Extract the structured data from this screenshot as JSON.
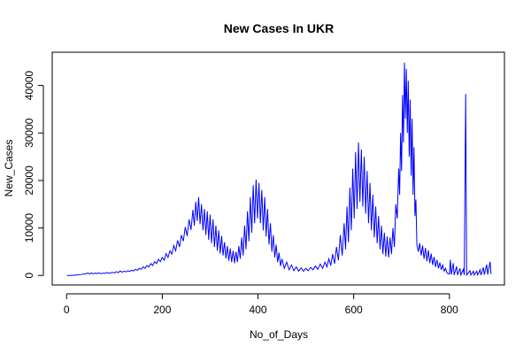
{
  "chart_data": {
    "type": "line",
    "title": "New Cases In UKR",
    "xlabel": "No_of_Days",
    "ylabel": "New_Cases",
    "xlim": [
      -30,
      915
    ],
    "ylim": [
      -2000,
      47000
    ],
    "x_ticks": [
      0,
      200,
      400,
      600,
      800
    ],
    "y_ticks": [
      0,
      10000,
      20000,
      30000,
      40000
    ],
    "grid": false,
    "legend": "none",
    "line_color": "#0000ff",
    "series": [
      {
        "points": [
          [
            1,
            0
          ],
          [
            10,
            0
          ],
          [
            20,
            100
          ],
          [
            30,
            200
          ],
          [
            40,
            350
          ],
          [
            45,
            500
          ],
          [
            48,
            300
          ],
          [
            52,
            550
          ],
          [
            56,
            350
          ],
          [
            60,
            500
          ],
          [
            64,
            400
          ],
          [
            68,
            550
          ],
          [
            72,
            350
          ],
          [
            76,
            500
          ],
          [
            80,
            450
          ],
          [
            85,
            600
          ],
          [
            90,
            450
          ],
          [
            95,
            650
          ],
          [
            100,
            550
          ],
          [
            104,
            800
          ],
          [
            108,
            600
          ],
          [
            112,
            950
          ],
          [
            116,
            700
          ],
          [
            120,
            900
          ],
          [
            124,
            750
          ],
          [
            128,
            1000
          ],
          [
            132,
            850
          ],
          [
            136,
            1100
          ],
          [
            140,
            950
          ],
          [
            144,
            1300
          ],
          [
            148,
            1100
          ],
          [
            152,
            1500
          ],
          [
            156,
            1300
          ],
          [
            160,
            1800
          ],
          [
            164,
            1500
          ],
          [
            168,
            2100
          ],
          [
            172,
            1800
          ],
          [
            176,
            2500
          ],
          [
            180,
            2100
          ],
          [
            184,
            2900
          ],
          [
            188,
            2500
          ],
          [
            192,
            3400
          ],
          [
            196,
            2900
          ],
          [
            200,
            3800
          ],
          [
            204,
            3200
          ],
          [
            208,
            4600
          ],
          [
            212,
            3800
          ],
          [
            216,
            5200
          ],
          [
            220,
            4500
          ],
          [
            224,
            6300
          ],
          [
            228,
            5200
          ],
          [
            232,
            7400
          ],
          [
            236,
            6000
          ],
          [
            240,
            8500
          ],
          [
            244,
            7200
          ],
          [
            248,
            10200
          ],
          [
            252,
            8300
          ],
          [
            256,
            11800
          ],
          [
            260,
            9600
          ],
          [
            264,
            13800
          ],
          [
            267,
            10500
          ],
          [
            270,
            15500
          ],
          [
            273,
            11500
          ],
          [
            276,
            16500
          ],
          [
            279,
            10800
          ],
          [
            282,
            15000
          ],
          [
            285,
            9500
          ],
          [
            288,
            14000
          ],
          [
            291,
            8500
          ],
          [
            294,
            13500
          ],
          [
            297,
            7500
          ],
          [
            300,
            12800
          ],
          [
            303,
            6800
          ],
          [
            306,
            11800
          ],
          [
            309,
            6000
          ],
          [
            312,
            10500
          ],
          [
            315,
            5200
          ],
          [
            318,
            9500
          ],
          [
            321,
            4600
          ],
          [
            324,
            8300
          ],
          [
            327,
            4200
          ],
          [
            330,
            7000
          ],
          [
            333,
            3600
          ],
          [
            336,
            6200
          ],
          [
            339,
            3100
          ],
          [
            342,
            5700
          ],
          [
            345,
            2800
          ],
          [
            348,
            5200
          ],
          [
            351,
            2600
          ],
          [
            354,
            5000
          ],
          [
            357,
            2800
          ],
          [
            360,
            6200
          ],
          [
            363,
            3500
          ],
          [
            366,
            8000
          ],
          [
            369,
            4200
          ],
          [
            372,
            10500
          ],
          [
            375,
            5500
          ],
          [
            378,
            13500
          ],
          [
            381,
            7200
          ],
          [
            384,
            16500
          ],
          [
            387,
            9000
          ],
          [
            390,
            19000
          ],
          [
            393,
            11000
          ],
          [
            396,
            20200
          ],
          [
            399,
            12000
          ],
          [
            402,
            19500
          ],
          [
            405,
            11000
          ],
          [
            408,
            18000
          ],
          [
            411,
            9500
          ],
          [
            414,
            16500
          ],
          [
            417,
            8200
          ],
          [
            420,
            14000
          ],
          [
            423,
            6500
          ],
          [
            426,
            11000
          ],
          [
            429,
            5000
          ],
          [
            432,
            8500
          ],
          [
            435,
            3800
          ],
          [
            438,
            6500
          ],
          [
            441,
            2800
          ],
          [
            444,
            4800
          ],
          [
            447,
            2000
          ],
          [
            450,
            3500
          ],
          [
            455,
            1500
          ],
          [
            460,
            2800
          ],
          [
            465,
            1200
          ],
          [
            470,
            2200
          ],
          [
            475,
            1000
          ],
          [
            480,
            1800
          ],
          [
            485,
            900
          ],
          [
            490,
            1600
          ],
          [
            495,
            900
          ],
          [
            500,
            1500
          ],
          [
            505,
            1000
          ],
          [
            510,
            1700
          ],
          [
            515,
            1200
          ],
          [
            520,
            2000
          ],
          [
            525,
            1300
          ],
          [
            530,
            2400
          ],
          [
            535,
            1500
          ],
          [
            540,
            2800
          ],
          [
            544,
            1800
          ],
          [
            548,
            3500
          ],
          [
            552,
            2100
          ],
          [
            556,
            4500
          ],
          [
            560,
            2500
          ],
          [
            564,
            6000
          ],
          [
            568,
            3200
          ],
          [
            572,
            8500
          ],
          [
            576,
            4200
          ],
          [
            580,
            11000
          ],
          [
            583,
            5500
          ],
          [
            586,
            14500
          ],
          [
            589,
            7000
          ],
          [
            592,
            18500
          ],
          [
            595,
            9500
          ],
          [
            598,
            22500
          ],
          [
            601,
            12000
          ],
          [
            604,
            26000
          ],
          [
            607,
            14000
          ],
          [
            610,
            28000
          ],
          [
            613,
            15500
          ],
          [
            616,
            26500
          ],
          [
            619,
            14500
          ],
          [
            622,
            25000
          ],
          [
            625,
            13000
          ],
          [
            628,
            22000
          ],
          [
            631,
            11000
          ],
          [
            634,
            19500
          ],
          [
            637,
            9500
          ],
          [
            640,
            17000
          ],
          [
            643,
            8000
          ],
          [
            646,
            14500
          ],
          [
            649,
            6800
          ],
          [
            652,
            12500
          ],
          [
            655,
            5500
          ],
          [
            658,
            10500
          ],
          [
            661,
            4500
          ],
          [
            664,
            9000
          ],
          [
            667,
            4000
          ],
          [
            670,
            8200
          ],
          [
            673,
            3800
          ],
          [
            676,
            8000
          ],
          [
            679,
            4500
          ],
          [
            682,
            10000
          ],
          [
            685,
            6000
          ],
          [
            688,
            15000
          ],
          [
            691,
            12000
          ],
          [
            694,
            22500
          ],
          [
            696,
            17000
          ],
          [
            698,
            30000
          ],
          [
            700,
            22000
          ],
          [
            702,
            38000
          ],
          [
            704,
            28000
          ],
          [
            706,
            44800
          ],
          [
            708,
            33000
          ],
          [
            710,
            43500
          ],
          [
            712,
            30000
          ],
          [
            714,
            41000
          ],
          [
            716,
            25000
          ],
          [
            718,
            37000
          ],
          [
            720,
            21000
          ],
          [
            722,
            33000
          ],
          [
            724,
            17000
          ],
          [
            726,
            27000
          ],
          [
            728,
            12500
          ],
          [
            730,
            16000
          ],
          [
            732,
            6500
          ],
          [
            735,
            5000
          ],
          [
            738,
            6800
          ],
          [
            741,
            4200
          ],
          [
            744,
            6300
          ],
          [
            747,
            3500
          ],
          [
            750,
            5800
          ],
          [
            753,
            3000
          ],
          [
            756,
            5300
          ],
          [
            759,
            2600
          ],
          [
            762,
            4600
          ],
          [
            765,
            2200
          ],
          [
            768,
            3900
          ],
          [
            771,
            1800
          ],
          [
            774,
            3300
          ],
          [
            777,
            1500
          ],
          [
            780,
            2700
          ],
          [
            783,
            1200
          ],
          [
            786,
            2200
          ],
          [
            789,
            900
          ],
          [
            792,
            1500
          ],
          [
            795,
            500
          ],
          [
            800,
            300
          ],
          [
            802,
            3300
          ],
          [
            804,
            200
          ],
          [
            808,
            2600
          ],
          [
            810,
            100
          ],
          [
            815,
            1900
          ],
          [
            817,
            100
          ],
          [
            822,
            1500
          ],
          [
            824,
            100
          ],
          [
            829,
            1300
          ],
          [
            831,
            100
          ],
          [
            834,
            38200
          ],
          [
            836,
            100
          ],
          [
            843,
            1000
          ],
          [
            845,
            100
          ],
          [
            850,
            900
          ],
          [
            852,
            100
          ],
          [
            857,
            900
          ],
          [
            859,
            100
          ],
          [
            864,
            1200
          ],
          [
            866,
            100
          ],
          [
            871,
            1700
          ],
          [
            873,
            150
          ],
          [
            878,
            2300
          ],
          [
            880,
            200
          ],
          [
            885,
            2900
          ],
          [
            887,
            300
          ]
        ]
      }
    ]
  }
}
